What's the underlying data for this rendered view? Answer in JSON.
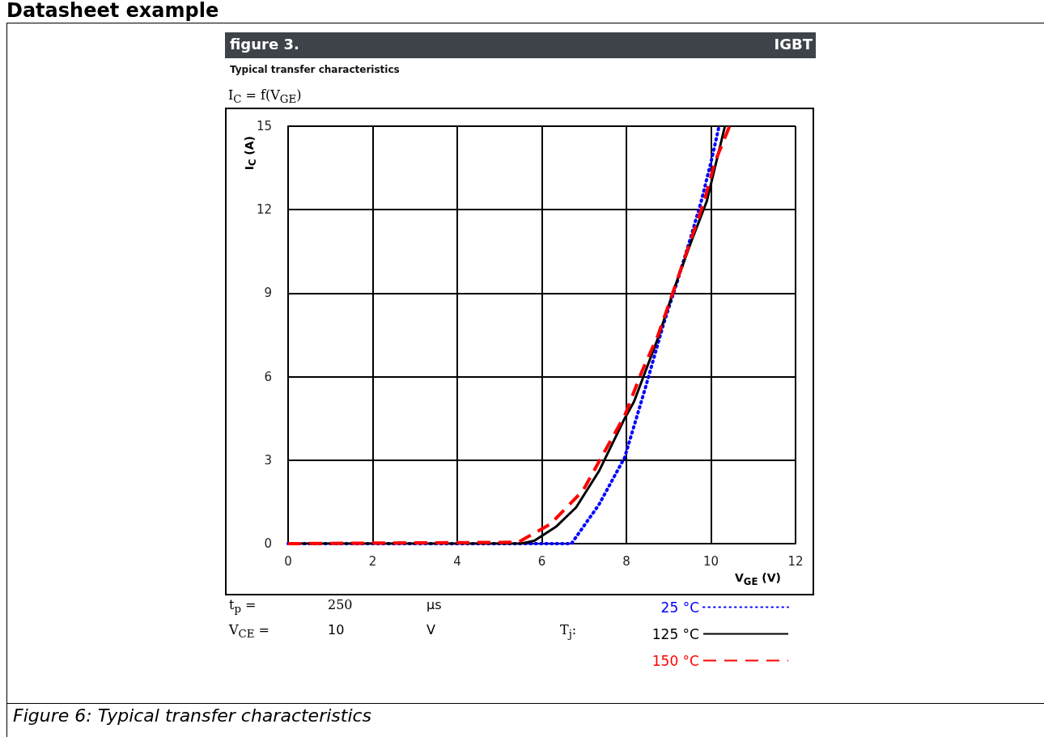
{
  "chart_data": {
    "type": "line",
    "title": "figure 3.",
    "subtitle": "Typical transfer characteristics",
    "xlabel": "V$_{GE}$ (V)",
    "ylabel": "I$_{C}$ (A)",
    "legend_title": "T$_{j}$:",
    "annotations": [
      "Datasheet example",
      "IGBT",
      "I$_{C}$ = f(V$_{GE}$)",
      "t$_{p}$ =",
      "250",
      "µs",
      "V$_{CE}$ =",
      "10",
      "V",
      "Figure 6: Typical transfer characteristics"
    ],
    "xlim": [
      0,
      12
    ],
    "xticks": [
      0,
      2,
      4,
      6,
      8,
      10,
      12
    ],
    "ylim": [
      0,
      15
    ],
    "yticks": [
      0,
      3,
      6,
      9,
      12,
      15
    ],
    "grid": true,
    "legend": "bottom right",
    "marker": "none",
    "series": [
      {
        "name": "25 °C",
        "color": "#0000ff",
        "line_style": "dotted",
        "x": [
          0,
          6.7,
          7.35,
          7.96,
          8.43,
          8.88,
          9.2,
          9.52,
          9.77,
          10.03,
          10.19
        ],
        "values": [
          0,
          0,
          1.4,
          3.1,
          5.5,
          7.9,
          9.4,
          11.0,
          12.3,
          13.9,
          15
        ]
      },
      {
        "name": "125 °C",
        "color": "#000000",
        "line_style": "solid",
        "x": [
          0,
          5.5,
          5.82,
          6.33,
          6.81,
          7.35,
          7.96,
          8.18,
          8.75,
          9.14,
          9.52,
          9.9,
          10.33
        ],
        "values": [
          0,
          0,
          0.1,
          0.6,
          1.3,
          2.6,
          4.5,
          5.1,
          7.4,
          9.2,
          10.8,
          12.3,
          15
        ]
      },
      {
        "name": "150 °C",
        "color": "#ff0000",
        "line_style": "dashed",
        "x": [
          0,
          5.44,
          6.2,
          6.97,
          7.48,
          7.96,
          8.37,
          8.75,
          9.14,
          9.52,
          9.84,
          10.09,
          10.44
        ],
        "values": [
          0,
          0.05,
          0.7,
          1.9,
          3.3,
          4.6,
          6.2,
          7.5,
          9.2,
          10.9,
          12.3,
          13.7,
          15
        ]
      }
    ]
  }
}
